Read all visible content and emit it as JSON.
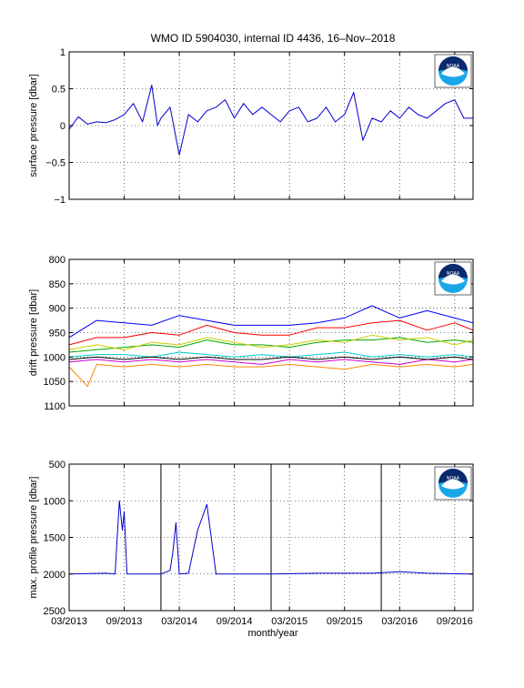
{
  "figure": {
    "title": "WMO ID 5904030, internal ID 4436, 16–Nov–2018",
    "xlabel": "month/year",
    "logo_text": "NOAA",
    "logo_colors": {
      "navy": "#0a2a6b",
      "sky": "#19a6e8",
      "white": "#ffffff"
    }
  },
  "chart_data": [
    {
      "type": "line",
      "ylabel": "surface pressure [dbar]",
      "ylim": [
        -1,
        1
      ],
      "yticks": [
        -1,
        -0.5,
        0,
        0.5,
        1
      ],
      "ytick_labels": [
        "−1",
        "−0.5",
        "0",
        "0.5",
        "1"
      ],
      "y_reversed": false,
      "xlim": [
        "2013-03",
        "2016-11"
      ],
      "grid": true,
      "color": "#0000cc",
      "series": [
        {
          "values": [
            [
              "2013-03",
              -0.05
            ],
            [
              "2013-04",
              0.12
            ],
            [
              "2013-05",
              0.02
            ],
            [
              "2013-06",
              0.05
            ],
            [
              "2013-07",
              0.04
            ],
            [
              "2013-08",
              0.08
            ],
            [
              "2013-09",
              0.15
            ],
            [
              "2013-10",
              0.3
            ],
            [
              "2013-11",
              0.05
            ],
            [
              "2013-12",
              0.55
            ],
            [
              "2013-12-20",
              0.0
            ],
            [
              "2014-01",
              0.1
            ],
            [
              "2014-02",
              0.25
            ],
            [
              "2014-03",
              -0.4
            ],
            [
              "2014-04",
              0.15
            ],
            [
              "2014-05",
              0.05
            ],
            [
              "2014-06",
              0.2
            ],
            [
              "2014-07",
              0.25
            ],
            [
              "2014-08",
              0.35
            ],
            [
              "2014-09",
              0.1
            ],
            [
              "2014-10",
              0.3
            ],
            [
              "2014-11",
              0.15
            ],
            [
              "2014-12",
              0.25
            ],
            [
              "2015-01",
              0.15
            ],
            [
              "2015-02",
              0.05
            ],
            [
              "2015-03",
              0.2
            ],
            [
              "2015-04",
              0.25
            ],
            [
              "2015-05",
              0.05
            ],
            [
              "2015-06",
              0.1
            ],
            [
              "2015-07",
              0.25
            ],
            [
              "2015-08",
              0.05
            ],
            [
              "2015-09",
              0.15
            ],
            [
              "2015-10",
              0.45
            ],
            [
              "2015-11",
              -0.2
            ],
            [
              "2015-12",
              0.1
            ],
            [
              "2016-01",
              0.05
            ],
            [
              "2016-02",
              0.2
            ],
            [
              "2016-03",
              0.1
            ],
            [
              "2016-04",
              0.25
            ],
            [
              "2016-05",
              0.15
            ],
            [
              "2016-06",
              0.1
            ],
            [
              "2016-07",
              0.2
            ],
            [
              "2016-08",
              0.3
            ],
            [
              "2016-09",
              0.35
            ],
            [
              "2016-10",
              0.1
            ],
            [
              "2016-11",
              0.1
            ]
          ]
        }
      ]
    },
    {
      "type": "line",
      "ylabel": "drift pressure [dbar]",
      "ylim": [
        800,
        1100
      ],
      "yticks": [
        800,
        850,
        900,
        950,
        1000,
        1050,
        1100
      ],
      "ytick_labels": [
        "800",
        "850",
        "900",
        "950",
        "1000",
        "1050",
        "1100"
      ],
      "y_reversed": true,
      "xlim": [
        "2013-03",
        "2016-11"
      ],
      "grid": true,
      "note": "many overlapping multicolored drift measurement series",
      "series": [
        {
          "color": "#0000ff",
          "values": [
            [
              "2013-03",
              960
            ],
            [
              "2013-06",
              925
            ],
            [
              "2013-09",
              930
            ],
            [
              "2013-12",
              935
            ],
            [
              "2014-03",
              915
            ],
            [
              "2014-06",
              925
            ],
            [
              "2014-09",
              935
            ],
            [
              "2014-12",
              935
            ],
            [
              "2015-03",
              935
            ],
            [
              "2015-06",
              930
            ],
            [
              "2015-09",
              920
            ],
            [
              "2015-12",
              895
            ],
            [
              "2016-03",
              920
            ],
            [
              "2016-06",
              905
            ],
            [
              "2016-09",
              920
            ],
            [
              "2016-11",
              930
            ]
          ]
        },
        {
          "color": "#ff0000",
          "values": [
            [
              "2013-03",
              975
            ],
            [
              "2013-06",
              960
            ],
            [
              "2013-09",
              960
            ],
            [
              "2013-12",
              950
            ],
            [
              "2014-03",
              955
            ],
            [
              "2014-06",
              935
            ],
            [
              "2014-09",
              950
            ],
            [
              "2014-12",
              955
            ],
            [
              "2015-03",
              955
            ],
            [
              "2015-06",
              940
            ],
            [
              "2015-09",
              940
            ],
            [
              "2015-12",
              930
            ],
            [
              "2016-03",
              925
            ],
            [
              "2016-06",
              945
            ],
            [
              "2016-09",
              930
            ],
            [
              "2016-11",
              945
            ]
          ]
        },
        {
          "color": "#00aa00",
          "values": [
            [
              "2013-03",
              990
            ],
            [
              "2013-06",
              985
            ],
            [
              "2013-09",
              980
            ],
            [
              "2013-12",
              975
            ],
            [
              "2014-03",
              980
            ],
            [
              "2014-06",
              965
            ],
            [
              "2014-09",
              975
            ],
            [
              "2014-12",
              975
            ],
            [
              "2015-03",
              980
            ],
            [
              "2015-06",
              970
            ],
            [
              "2015-09",
              965
            ],
            [
              "2015-12",
              965
            ],
            [
              "2016-03",
              960
            ],
            [
              "2016-06",
              970
            ],
            [
              "2016-09",
              965
            ],
            [
              "2016-11",
              970
            ]
          ]
        },
        {
          "color": "#cccc00",
          "values": [
            [
              "2013-03",
              985
            ],
            [
              "2013-06",
              975
            ],
            [
              "2013-09",
              985
            ],
            [
              "2013-12",
              970
            ],
            [
              "2014-03",
              975
            ],
            [
              "2014-06",
              960
            ],
            [
              "2014-09",
              970
            ],
            [
              "2014-12",
              980
            ],
            [
              "2015-03",
              975
            ],
            [
              "2015-06",
              965
            ],
            [
              "2015-09",
              970
            ],
            [
              "2015-12",
              955
            ],
            [
              "2016-03",
              965
            ],
            [
              "2016-06",
              960
            ],
            [
              "2016-09",
              975
            ],
            [
              "2016-11",
              965
            ]
          ]
        },
        {
          "color": "#00cccc",
          "values": [
            [
              "2013-03",
              1000
            ],
            [
              "2013-06",
              995
            ],
            [
              "2013-09",
              995
            ],
            [
              "2013-12",
              1000
            ],
            [
              "2014-03",
              990
            ],
            [
              "2014-06",
              995
            ],
            [
              "2014-09",
              1000
            ],
            [
              "2014-12",
              995
            ],
            [
              "2015-03",
              1000
            ],
            [
              "2015-06",
              995
            ],
            [
              "2015-09",
              990
            ],
            [
              "2015-12",
              1000
            ],
            [
              "2016-03",
              995
            ],
            [
              "2016-06",
              1000
            ],
            [
              "2016-09",
              995
            ],
            [
              "2016-11",
              1000
            ]
          ]
        },
        {
          "color": "#cc00cc",
          "values": [
            [
              "2013-03",
              1010
            ],
            [
              "2013-06",
              1005
            ],
            [
              "2013-09",
              1010
            ],
            [
              "2013-12",
              1005
            ],
            [
              "2014-03",
              1010
            ],
            [
              "2014-06",
              1005
            ],
            [
              "2014-09",
              1010
            ],
            [
              "2014-12",
              1015
            ],
            [
              "2015-03",
              1005
            ],
            [
              "2015-06",
              1010
            ],
            [
              "2015-09",
              1005
            ],
            [
              "2015-12",
              1010
            ],
            [
              "2016-03",
              1015
            ],
            [
              "2016-06",
              1005
            ],
            [
              "2016-09",
              1010
            ],
            [
              "2016-11",
              1005
            ]
          ]
        },
        {
          "color": "#000000",
          "values": [
            [
              "2013-03",
              1005
            ],
            [
              "2013-06",
              1000
            ],
            [
              "2013-09",
              1005
            ],
            [
              "2013-12",
              1000
            ],
            [
              "2014-03",
              1005
            ],
            [
              "2014-06",
              1000
            ],
            [
              "2014-09",
              1005
            ],
            [
              "2014-12",
              1005
            ],
            [
              "2015-03",
              1000
            ],
            [
              "2015-06",
              1005
            ],
            [
              "2015-09",
              1000
            ],
            [
              "2015-12",
              1005
            ],
            [
              "2016-03",
              1000
            ],
            [
              "2016-06",
              1005
            ],
            [
              "2016-09",
              1000
            ],
            [
              "2016-11",
              1005
            ]
          ]
        },
        {
          "color": "#ff8800",
          "values": [
            [
              "2013-03",
              1020
            ],
            [
              "2013-05",
              1060
            ],
            [
              "2013-06",
              1015
            ],
            [
              "2013-09",
              1020
            ],
            [
              "2013-12",
              1015
            ],
            [
              "2014-03",
              1020
            ],
            [
              "2014-06",
              1015
            ],
            [
              "2014-09",
              1020
            ],
            [
              "2014-12",
              1020
            ],
            [
              "2015-03",
              1015
            ],
            [
              "2015-06",
              1020
            ],
            [
              "2015-09",
              1025
            ],
            [
              "2015-12",
              1015
            ],
            [
              "2016-03",
              1020
            ],
            [
              "2016-06",
              1015
            ],
            [
              "2016-09",
              1020
            ],
            [
              "2016-11",
              1015
            ]
          ]
        }
      ]
    },
    {
      "type": "line",
      "ylabel": "max. profile pressure [dbar]",
      "ylim": [
        500,
        2500
      ],
      "yticks": [
        500,
        1000,
        1500,
        2000,
        2500
      ],
      "ytick_labels": [
        "500",
        "1000",
        "1500",
        "2000",
        "2500"
      ],
      "y_reversed": true,
      "xlim": [
        "2013-03",
        "2016-11"
      ],
      "grid": true,
      "color": "#0000cc",
      "vertical_markers": [
        "2014-01",
        "2015-01",
        "2016-01"
      ],
      "series": [
        {
          "values": [
            [
              "2013-03",
              2000
            ],
            [
              "2013-07",
              1990
            ],
            [
              "2013-08",
              2000
            ],
            [
              "2013-08-15",
              1000
            ],
            [
              "2013-08-25",
              1400
            ],
            [
              "2013-09",
              1150
            ],
            [
              "2013-09-10",
              2000
            ],
            [
              "2014-01",
              2000
            ],
            [
              "2014-02",
              1950
            ],
            [
              "2014-02-10",
              1700
            ],
            [
              "2014-02-20",
              1300
            ],
            [
              "2014-03",
              2000
            ],
            [
              "2014-04",
              1990
            ],
            [
              "2014-05",
              1400
            ],
            [
              "2014-06",
              1050
            ],
            [
              "2014-07",
              2000
            ],
            [
              "2015-01",
              2000
            ],
            [
              "2015-06",
              1990
            ],
            [
              "2015-12",
              1990
            ],
            [
              "2016-03",
              1970
            ],
            [
              "2016-06",
              1990
            ],
            [
              "2016-11",
              2000
            ]
          ]
        }
      ]
    }
  ],
  "xaxis": {
    "ticks": [
      "2013-03",
      "2013-09",
      "2014-03",
      "2014-09",
      "2015-03",
      "2015-09",
      "2016-03",
      "2016-09"
    ],
    "labels": [
      "03/2013",
      "09/2013",
      "03/2014",
      "09/2014",
      "03/2015",
      "09/2015",
      "03/2016",
      "09/2016"
    ]
  }
}
